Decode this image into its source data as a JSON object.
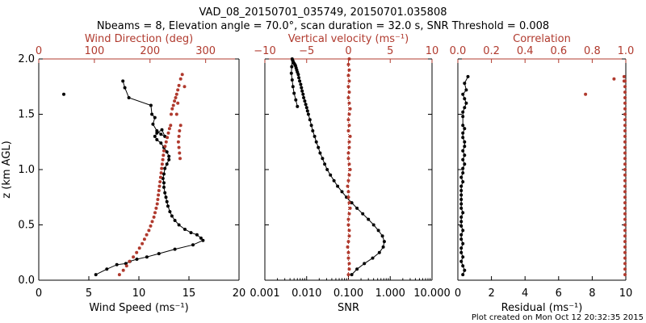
{
  "title_line1": "VAD_08_20150701_035749, 20150701.035808",
  "title_line2": "Nbeams = 8, Elevation angle = 70.0°, scan duration = 32.0 s, SNR Threshold = 0.008",
  "footer": "Plot created on Mon Oct 12 20:32:35 2015",
  "colors": {
    "black": "#000000",
    "red": "#b03a2e"
  },
  "chart_data": [
    {
      "type": "line",
      "panel": "wind",
      "ylabel": "z (km AGL)",
      "xlabel": "Wind Speed (ms⁻¹)",
      "x2label": "Wind Direction (deg)",
      "xlim": [
        0,
        20
      ],
      "x2lim": [
        0,
        360
      ],
      "ylim": [
        0,
        2
      ],
      "xticks": [
        "0",
        "5",
        "10",
        "15",
        "20"
      ],
      "x2ticks": [
        "0",
        "100",
        "200",
        "300"
      ],
      "yticks": [
        "0.0",
        "0.5",
        "1.0",
        "1.5",
        "2.0"
      ],
      "series": [
        {
          "axis": "bottom",
          "color": "#000000",
          "x": [
            5.7,
            6.8,
            7.8,
            8.7,
            9.1,
            9.8,
            10.8,
            12.0,
            13.6,
            15.4,
            16.4,
            16.2,
            15.8,
            15.2,
            14.6,
            14.0,
            13.6,
            13.3,
            13.1,
            12.9,
            12.8,
            12.7,
            12.6,
            12.5,
            12.5,
            12.4,
            12.5,
            12.6,
            12.8,
            13.0,
            13.0,
            12.8,
            12.5,
            12.2,
            11.8,
            11.6,
            11.8,
            12.3,
            12.6,
            12.2,
            11.8,
            11.4,
            11.6,
            11.3,
            11.2,
            9.0,
            8.6,
            8.4
          ],
          "y": [
            0.05,
            0.1,
            0.14,
            0.15,
            0.17,
            0.19,
            0.21,
            0.24,
            0.28,
            0.32,
            0.36,
            0.38,
            0.41,
            0.43,
            0.46,
            0.5,
            0.54,
            0.58,
            0.62,
            0.67,
            0.71,
            0.75,
            0.79,
            0.84,
            0.88,
            0.92,
            0.96,
            1.01,
            1.05,
            1.09,
            1.12,
            1.16,
            1.2,
            1.24,
            1.27,
            1.3,
            1.33,
            1.36,
            1.3,
            1.32,
            1.35,
            1.41,
            1.47,
            1.5,
            1.58,
            1.65,
            1.74,
            1.8
          ]
        },
        {
          "axis": "bottom",
          "color": "#000000",
          "points_only": true,
          "x": [
            2.5
          ],
          "y": [
            1.68
          ]
        },
        {
          "axis": "top",
          "color": "#b03a2e",
          "x": [
            145,
            152,
            158,
            163,
            170,
            176,
            181,
            186,
            190,
            194,
            198,
            201,
            204,
            207,
            209,
            211,
            213,
            214,
            215,
            216,
            217,
            218,
            219,
            220,
            221,
            222,
            223,
            224,
            225,
            227,
            229,
            231,
            233,
            235,
            237,
            238,
            240,
            242,
            244,
            246,
            248,
            250,
            252,
            255,
            258,
            254,
            253,
            252,
            251,
            252,
            253,
            255,
            248,
            250,
            262
          ],
          "y": [
            0.05,
            0.09,
            0.13,
            0.17,
            0.21,
            0.25,
            0.29,
            0.33,
            0.37,
            0.41,
            0.45,
            0.49,
            0.53,
            0.57,
            0.61,
            0.65,
            0.69,
            0.73,
            0.77,
            0.81,
            0.85,
            0.89,
            0.93,
            0.97,
            1.01,
            1.05,
            1.09,
            1.13,
            1.17,
            1.21,
            1.25,
            1.29,
            1.33,
            1.37,
            1.4,
            1.5,
            1.55,
            1.58,
            1.62,
            1.65,
            1.68,
            1.72,
            1.76,
            1.82,
            1.86,
            1.1,
            1.15,
            1.2,
            1.25,
            1.3,
            1.35,
            1.4,
            1.5,
            1.6,
            1.75
          ]
        }
      ]
    },
    {
      "type": "line",
      "panel": "snr_w",
      "xlabel": "SNR",
      "x2label": "Vertical velocity (ms⁻¹)",
      "xscale": "log",
      "xlim": [
        0.001,
        10
      ],
      "x2lim": [
        -10,
        10
      ],
      "ylim": [
        0,
        2
      ],
      "xticks": [
        "0.001",
        "0.010",
        "0.100",
        "1.000",
        "10.000"
      ],
      "x2ticks": [
        "−10",
        "−5",
        "0",
        "5",
        "10"
      ],
      "series": [
        {
          "axis": "bottom",
          "color": "#000000",
          "x": [
            0.12,
            0.16,
            0.24,
            0.38,
            0.55,
            0.68,
            0.72,
            0.65,
            0.52,
            0.4,
            0.3,
            0.22,
            0.16,
            0.12,
            0.09,
            0.07,
            0.055,
            0.045,
            0.037,
            0.031,
            0.027,
            0.024,
            0.021,
            0.019,
            0.017,
            0.0155,
            0.014,
            0.013,
            0.012,
            0.011,
            0.0105,
            0.01,
            0.0095,
            0.009,
            0.0085,
            0.0082,
            0.0078,
            0.0075,
            0.0072,
            0.0068,
            0.0065,
            0.0063,
            0.006,
            0.0058,
            0.0056,
            0.0054,
            0.0052,
            0.005,
            0.0048,
            0.0047,
            0.0046,
            0.0045,
            0.0044,
            0.0043,
            0.0045,
            0.0047,
            0.005,
            0.0055,
            0.006
          ],
          "y": [
            0.05,
            0.1,
            0.15,
            0.2,
            0.25,
            0.3,
            0.35,
            0.4,
            0.45,
            0.5,
            0.55,
            0.6,
            0.65,
            0.7,
            0.75,
            0.8,
            0.85,
            0.9,
            0.95,
            1.0,
            1.05,
            1.1,
            1.15,
            1.2,
            1.25,
            1.3,
            1.35,
            1.4,
            1.45,
            1.5,
            1.53,
            1.56,
            1.59,
            1.62,
            1.65,
            1.68,
            1.71,
            1.74,
            1.77,
            1.8,
            1.83,
            1.86,
            1.88,
            1.9,
            1.92,
            1.94,
            1.95,
            1.96,
            1.97,
            1.98,
            1.99,
            2.0,
            1.93,
            1.87,
            1.81,
            1.75,
            1.69,
            1.63,
            1.57
          ]
        },
        {
          "axis": "top",
          "color": "#b03a2e",
          "x": [
            0.0,
            0.1,
            0.1,
            0.0,
            0.0,
            -0.1,
            0.0,
            0.1,
            0.1,
            0.0,
            0.0,
            0.1,
            0.2,
            0.1,
            0.0,
            0.0,
            -0.1,
            0.0,
            0.1,
            0.2,
            0.1,
            0.0,
            0.0,
            0.1,
            0.1,
            0.2,
            0.0,
            0.1,
            0.0,
            0.1,
            0.2,
            0.1,
            0.0,
            0.1,
            0.0,
            0.1,
            0.0,
            0.1,
            0.0,
            0.1
          ],
          "y": [
            0.05,
            0.1,
            0.15,
            0.2,
            0.25,
            0.3,
            0.35,
            0.4,
            0.45,
            0.5,
            0.55,
            0.6,
            0.65,
            0.7,
            0.75,
            0.8,
            0.85,
            0.9,
            0.95,
            1.0,
            1.05,
            1.1,
            1.15,
            1.2,
            1.25,
            1.3,
            1.35,
            1.4,
            1.45,
            1.5,
            1.55,
            1.6,
            1.65,
            1.7,
            1.75,
            1.8,
            1.85,
            1.9,
            1.95,
            2.0
          ]
        }
      ]
    },
    {
      "type": "line",
      "panel": "corr_res",
      "xlabel": "Residual (ms⁻¹)",
      "x2label": "Correlation",
      "xlim": [
        0,
        10
      ],
      "x2lim": [
        0,
        1
      ],
      "ylim": [
        0,
        2
      ],
      "xticks": [
        "0",
        "2",
        "4",
        "6",
        "8",
        "10"
      ],
      "x2ticks": [
        "0.0",
        "0.2",
        "0.4",
        "0.6",
        "0.8",
        "1.0"
      ],
      "series": [
        {
          "axis": "bottom",
          "color": "#000000",
          "x": [
            0.3,
            0.4,
            0.3,
            0.2,
            0.3,
            0.2,
            0.2,
            0.3,
            0.2,
            0.2,
            0.3,
            0.2,
            0.2,
            0.2,
            0.3,
            0.2,
            0.2,
            0.2,
            0.2,
            0.2,
            0.2,
            0.3,
            0.2,
            0.3,
            0.3,
            0.4,
            0.3,
            0.4,
            0.3,
            0.4,
            0.4,
            0.3,
            0.3,
            0.4,
            0.3,
            0.3,
            0.3,
            0.4,
            0.5,
            0.4,
            0.3,
            0.5,
            0.4,
            0.6
          ],
          "y": [
            0.05,
            0.09,
            0.13,
            0.17,
            0.21,
            0.25,
            0.29,
            0.33,
            0.37,
            0.41,
            0.45,
            0.49,
            0.53,
            0.57,
            0.61,
            0.65,
            0.69,
            0.73,
            0.77,
            0.81,
            0.85,
            0.89,
            0.93,
            0.97,
            1.01,
            1.05,
            1.09,
            1.13,
            1.17,
            1.21,
            1.25,
            1.29,
            1.33,
            1.37,
            1.4,
            1.48,
            1.52,
            1.56,
            1.6,
            1.64,
            1.68,
            1.72,
            1.78,
            1.84
          ]
        },
        {
          "axis": "top",
          "color": "#b03a2e",
          "x": [
            0.995,
            0.995,
            0.995,
            0.995,
            0.995,
            0.995,
            0.995,
            0.995,
            0.995,
            0.995,
            0.995,
            0.995,
            0.995,
            0.995,
            0.995,
            0.995,
            0.995,
            0.995,
            0.995,
            0.995,
            0.995,
            0.995,
            0.995,
            0.995,
            0.995,
            0.995,
            0.995,
            0.995,
            0.995,
            0.995,
            0.995,
            0.995,
            0.995,
            0.995,
            0.995,
            0.99,
            0.99,
            0.93,
            0.76,
            0.995
          ],
          "y": [
            0.05,
            0.1,
            0.15,
            0.2,
            0.25,
            0.3,
            0.35,
            0.4,
            0.45,
            0.5,
            0.55,
            0.6,
            0.65,
            0.7,
            0.75,
            0.8,
            0.85,
            0.9,
            0.95,
            1.0,
            1.05,
            1.1,
            1.15,
            1.2,
            1.25,
            1.3,
            1.35,
            1.4,
            1.45,
            1.5,
            1.55,
            1.6,
            1.65,
            1.7,
            1.75,
            1.8,
            1.84,
            1.82,
            1.68,
            1.8
          ]
        }
      ]
    }
  ]
}
